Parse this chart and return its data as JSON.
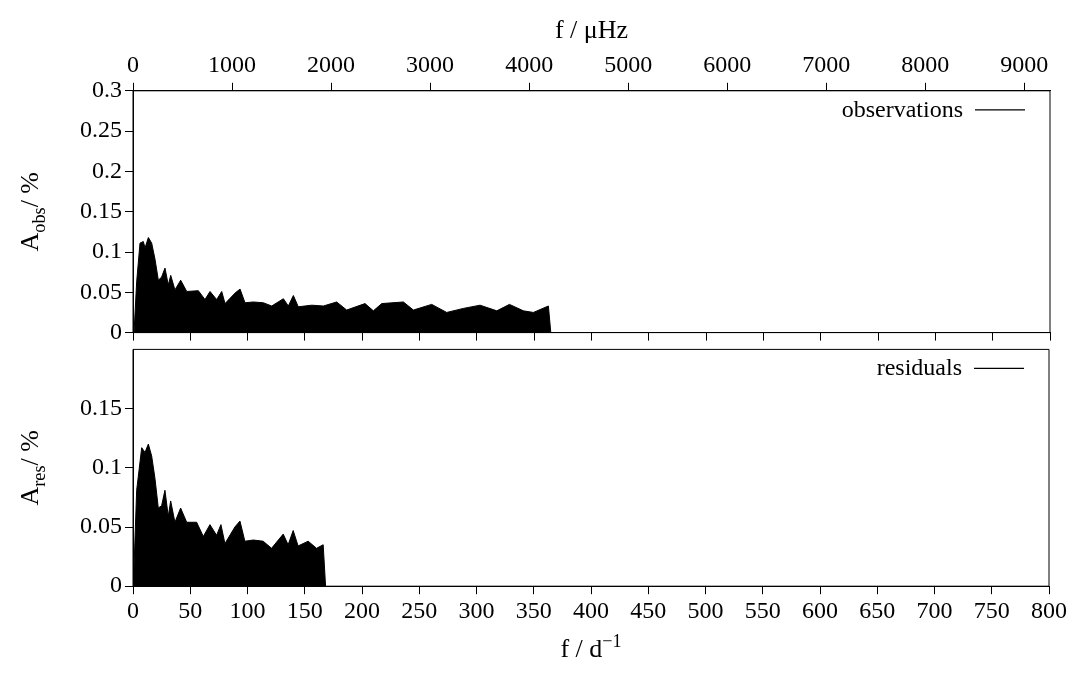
{
  "chart_data": [
    {
      "type": "area",
      "x2label": "f / μHz",
      "ylabel": "A$_{obs}$/ %",
      "xlim": [
        0,
        800
      ],
      "xticks": [
        0,
        50,
        100,
        150,
        200,
        250,
        300,
        350,
        400,
        450,
        500,
        550,
        600,
        650,
        700,
        750,
        800
      ],
      "x2lim": [
        0,
        9259
      ],
      "x2ticks": [
        0,
        1000,
        2000,
        3000,
        4000,
        5000,
        6000,
        7000,
        8000,
        9000
      ],
      "ylim": [
        0,
        0.3
      ],
      "yticks": [
        0,
        0.05,
        0.1,
        0.15,
        0.2,
        0.25,
        0.3
      ],
      "tick_labels": "y",
      "legend": "top right",
      "series": [
        {
          "name": "observations",
          "color": "#000000",
          "x": [
            0.9,
            3.2,
            6.1,
            9.0,
            10.5,
            13.4,
            16.3,
            19.2,
            22.1,
            25.0,
            27.9,
            30.8,
            32.9,
            36.6,
            41.6,
            46.9,
            57.0,
            62.8,
            67.2,
            73.0,
            77.4,
            80.3,
            89.0,
            93.4,
            97.7,
            105.0,
            113.7,
            121.0,
            131.2,
            135.5,
            139.9,
            144.2,
            155.9,
            166.1,
            177.7,
            186.4,
            202.4,
            209.7,
            217.0,
            235.9,
            244.6,
            260.6,
            273.7,
            288.2,
            302.8,
            317.4,
            328.4,
            340.6,
            349.3,
            362.4,
            364.5
          ],
          "values": [
            0,
            0.063,
            0.111,
            0.113,
            0.105,
            0.118,
            0.111,
            0.091,
            0.065,
            0.069,
            0.08,
            0.059,
            0.071,
            0.053,
            0.065,
            0.051,
            0.052,
            0.041,
            0.051,
            0.041,
            0.051,
            0.036,
            0.049,
            0.054,
            0.037,
            0.038,
            0.037,
            0.033,
            0.042,
            0.033,
            0.046,
            0.032,
            0.034,
            0.033,
            0.038,
            0.028,
            0.036,
            0.027,
            0.036,
            0.038,
            0.028,
            0.035,
            0.025,
            0.03,
            0.034,
            0.027,
            0.035,
            0.027,
            0.025,
            0.033,
            0
          ]
        }
      ]
    },
    {
      "type": "area",
      "xlabel": "f / d$^{−1}$",
      "ylabel": "A$_{res}$/ %",
      "xlim": [
        0,
        800
      ],
      "xticks": [
        0,
        50,
        100,
        150,
        200,
        250,
        300,
        350,
        400,
        450,
        500,
        550,
        600,
        650,
        700,
        750,
        800
      ],
      "ylim": [
        0,
        0.2
      ],
      "yticks": [
        0,
        0.05,
        0.1,
        0.15
      ],
      "legend": "top right",
      "series": [
        {
          "name": "residuals",
          "color": "#000000",
          "x": [
            0.3,
            3.2,
            7.6,
            10.5,
            13.4,
            16.3,
            19.2,
            22.1,
            25.0,
            27.9,
            30.8,
            32.9,
            36.6,
            41.6,
            46.9,
            55.6,
            61.4,
            67.2,
            73.0,
            76.8,
            80.3,
            89.0,
            93.4,
            97.7,
            105.0,
            113.7,
            121.0,
            131.2,
            135.5,
            139.9,
            144.2,
            153.0,
            160.3,
            166.1,
            168.2
          ],
          "values": [
            0,
            0.081,
            0.117,
            0.113,
            0.12,
            0.11,
            0.091,
            0.066,
            0.068,
            0.081,
            0.059,
            0.072,
            0.054,
            0.066,
            0.054,
            0.054,
            0.042,
            0.052,
            0.043,
            0.052,
            0.036,
            0.05,
            0.055,
            0.038,
            0.039,
            0.038,
            0.032,
            0.044,
            0.035,
            0.047,
            0.034,
            0.038,
            0.032,
            0.035,
            0
          ]
        }
      ]
    }
  ]
}
